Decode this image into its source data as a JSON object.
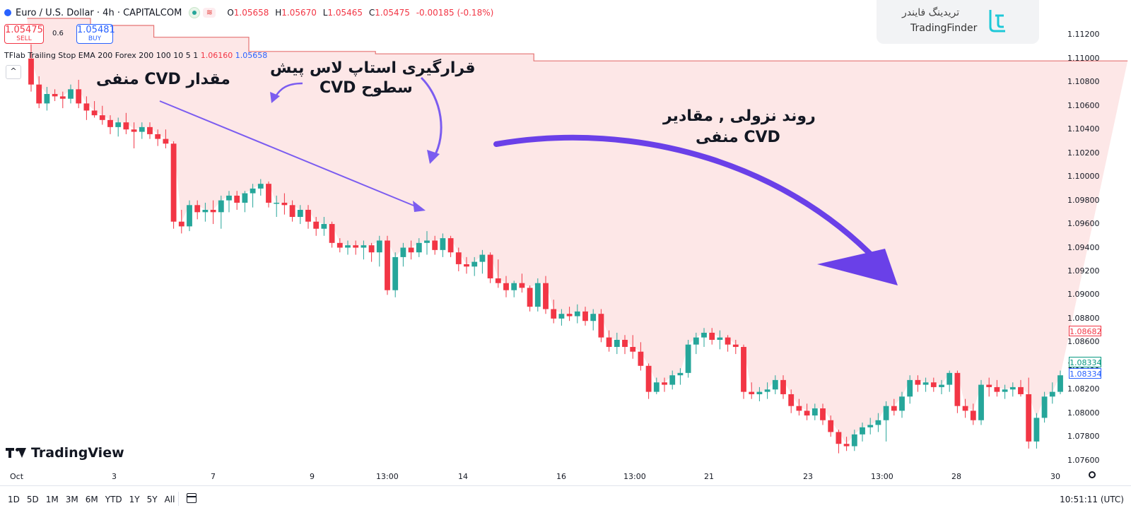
{
  "header": {
    "symbol_title": "Euro / U.S. Dollar · 4h · CAPITALCOM",
    "ohlc": [
      {
        "k": "O",
        "v": "1.05658"
      },
      {
        "k": "H",
        "v": "1.05670"
      },
      {
        "k": "L",
        "v": "1.05465"
      },
      {
        "k": "C",
        "v": "1.05475"
      },
      {
        "k": "",
        "v": "-0.00185 (-0.18%)"
      }
    ],
    "wave_icon": "≋"
  },
  "trade": {
    "sell_price": "1.05475",
    "sell_label": "SELL",
    "spread": "0.6",
    "buy_price": "1.05481",
    "buy_label": "BUY"
  },
  "indicator": {
    "name": "TFlab Trailing Stop EMA 200 Forex 200 100 10 5 1",
    "value_red": "1.06160",
    "value_blue": "1.05658",
    "collapse_icon": "^"
  },
  "brand": {
    "persian": "تریدینگ فایندر",
    "english": "TradingFinder"
  },
  "annotations": {
    "negative_cvd": "مقدار CVD منفی",
    "stop_line1": "قرارگیری استاپ لاس پیش",
    "stop_line2": "سطوح CVD",
    "trend_line1": "روند نزولی , مقادیر",
    "trend_line2": "CVD منفی"
  },
  "tradingview_label": "TradingView",
  "price_axis": [
    "1.11200",
    "1.11000",
    "1.10800",
    "1.10600",
    "1.10400",
    "1.10200",
    "1.10000",
    "1.09800",
    "1.09600",
    "1.09400",
    "1.09200",
    "1.09000",
    "1.08800",
    "1.08600",
    "1.08400",
    "1.08200",
    "1.08000",
    "1.07800",
    "1.07600"
  ],
  "price_tags": {
    "red": "1.08682",
    "green": "1.08334",
    "blue": "1.08334"
  },
  "time_axis": [
    "Oct",
    "3",
    "7",
    "9",
    "13:00",
    "14",
    "16",
    "13:00",
    "21",
    "23",
    "13:00",
    "28",
    "30"
  ],
  "ranges": [
    "1D",
    "5D",
    "1M",
    "3M",
    "6M",
    "YTD",
    "1Y",
    "5Y",
    "All"
  ],
  "clock": "10:51:11 (UTC)",
  "colors": {
    "up": "#26a69a",
    "down": "#f23645",
    "stop_line": "#e57373",
    "stop_fill": "#fde7e7",
    "arrow": "#7b5cf0"
  },
  "chart_data": {
    "type": "candlestick",
    "ylim": [
      1.0755,
      1.1128
    ],
    "candles": [
      [
        1.11,
        1.1112,
        1.1072,
        1.1078
      ],
      [
        1.1078,
        1.1085,
        1.1058,
        1.1062
      ],
      [
        1.1062,
        1.1076,
        1.1056,
        1.107
      ],
      [
        1.107,
        1.1074,
        1.1064,
        1.1068
      ],
      [
        1.1068,
        1.1072,
        1.1058,
        1.1066
      ],
      [
        1.1066,
        1.1078,
        1.1062,
        1.1074
      ],
      [
        1.1074,
        1.1082,
        1.1058,
        1.1062
      ],
      [
        1.1062,
        1.1068,
        1.1048,
        1.1056
      ],
      [
        1.1056,
        1.1064,
        1.105,
        1.1052
      ],
      [
        1.1052,
        1.106,
        1.1044,
        1.1048
      ],
      [
        1.1048,
        1.1052,
        1.1036,
        1.1042
      ],
      [
        1.1042,
        1.105,
        1.1034,
        1.1046
      ],
      [
        1.1046,
        1.1054,
        1.1036,
        1.104
      ],
      [
        1.104,
        1.1046,
        1.1024,
        1.1038
      ],
      [
        1.1038,
        1.1046,
        1.1032,
        1.1042
      ],
      [
        1.1042,
        1.1046,
        1.1032,
        1.1036
      ],
      [
        1.1036,
        1.104,
        1.1026,
        1.1032
      ],
      [
        1.1032,
        1.104,
        1.1024,
        1.1028
      ],
      [
        1.1028,
        1.103,
        1.0956,
        1.0962
      ],
      [
        1.0962,
        1.0972,
        1.0952,
        1.0958
      ],
      [
        1.0958,
        1.098,
        1.0954,
        1.0976
      ],
      [
        1.0976,
        1.098,
        1.0964,
        1.097
      ],
      [
        1.097,
        1.0978,
        1.0962,
        1.0972
      ],
      [
        1.0972,
        1.098,
        1.096,
        1.097
      ],
      [
        1.097,
        1.0984,
        1.0956,
        1.098
      ],
      [
        1.098,
        1.0988,
        1.097,
        1.0984
      ],
      [
        1.0984,
        1.0988,
        1.0972,
        1.0978
      ],
      [
        1.0978,
        1.0988,
        1.097,
        1.0986
      ],
      [
        1.0986,
        1.0994,
        1.0974,
        1.099
      ],
      [
        1.099,
        1.0998,
        1.0984,
        1.0994
      ],
      [
        1.0994,
        1.0996,
        1.0974,
        1.0978
      ],
      [
        1.0978,
        1.0984,
        1.0966,
        1.0978
      ],
      [
        1.0978,
        1.0986,
        1.0968,
        1.0976
      ],
      [
        1.0976,
        1.098,
        1.0962,
        1.0966
      ],
      [
        1.0966,
        1.0976,
        1.096,
        1.0972
      ],
      [
        1.0972,
        1.0976,
        1.0956,
        1.0962
      ],
      [
        1.0962,
        1.0966,
        1.095,
        1.0956
      ],
      [
        1.0956,
        1.0966,
        1.095,
        1.096
      ],
      [
        1.096,
        1.0962,
        1.094,
        1.0944
      ],
      [
        1.0944,
        1.0948,
        1.0936,
        1.094
      ],
      [
        1.094,
        1.0946,
        1.0934,
        1.0942
      ],
      [
        1.0942,
        1.0946,
        1.0934,
        1.094
      ],
      [
        1.094,
        1.0946,
        1.093,
        1.0942
      ],
      [
        1.0942,
        1.0944,
        1.0928,
        1.0936
      ],
      [
        1.0936,
        1.095,
        1.0924,
        1.0946
      ],
      [
        1.0946,
        1.095,
        1.09,
        1.0904
      ],
      [
        1.0904,
        1.0936,
        1.0898,
        1.0932
      ],
      [
        1.0932,
        1.0944,
        1.0924,
        1.094
      ],
      [
        1.094,
        1.0946,
        1.093,
        1.0936
      ],
      [
        1.0936,
        1.0948,
        1.0932,
        1.0944
      ],
      [
        1.0944,
        1.0954,
        1.0934,
        1.0946
      ],
      [
        1.0946,
        1.095,
        1.0934,
        1.0938
      ],
      [
        1.0938,
        1.0952,
        1.0932,
        1.0948
      ],
      [
        1.0948,
        1.095,
        1.0932,
        1.0936
      ],
      [
        1.0936,
        1.094,
        1.092,
        1.0926
      ],
      [
        1.0926,
        1.0932,
        1.0918,
        1.0924
      ],
      [
        1.0924,
        1.0932,
        1.0916,
        1.0928
      ],
      [
        1.0928,
        1.0938,
        1.0918,
        1.0934
      ],
      [
        1.0934,
        1.0936,
        1.091,
        1.0914
      ],
      [
        1.0914,
        1.093,
        1.0906,
        1.091
      ],
      [
        1.091,
        1.0916,
        1.0898,
        1.0904
      ],
      [
        1.0904,
        1.0912,
        1.0898,
        1.091
      ],
      [
        1.091,
        1.0918,
        1.0902,
        1.0906
      ],
      [
        1.0906,
        1.0908,
        1.0886,
        1.089
      ],
      [
        1.089,
        1.0914,
        1.0886,
        1.091
      ],
      [
        1.091,
        1.0916,
        1.0884,
        1.0888
      ],
      [
        1.0888,
        1.0896,
        1.0876,
        1.088
      ],
      [
        1.088,
        1.0888,
        1.0874,
        1.0884
      ],
      [
        1.0884,
        1.089,
        1.0878,
        1.0882
      ],
      [
        1.0882,
        1.0892,
        1.0876,
        1.0886
      ],
      [
        1.0886,
        1.089,
        1.0874,
        1.0878
      ],
      [
        1.0878,
        1.0888,
        1.087,
        1.0884
      ],
      [
        1.0884,
        1.0888,
        1.086,
        1.0864
      ],
      [
        1.0864,
        1.087,
        1.0852,
        1.0856
      ],
      [
        1.0856,
        1.0868,
        1.085,
        1.0862
      ],
      [
        1.0862,
        1.0866,
        1.085,
        1.0856
      ],
      [
        1.0856,
        1.0866,
        1.0846,
        1.0852
      ],
      [
        1.0852,
        1.086,
        1.0836,
        1.084
      ],
      [
        1.084,
        1.0842,
        1.0812,
        1.0818
      ],
      [
        1.0818,
        1.083,
        1.0816,
        1.0826
      ],
      [
        1.0826,
        1.083,
        1.0818,
        1.0824
      ],
      [
        1.0824,
        1.0836,
        1.082,
        1.0832
      ],
      [
        1.0832,
        1.0838,
        1.0824,
        1.0834
      ],
      [
        1.0834,
        1.0862,
        1.083,
        1.0858
      ],
      [
        1.0858,
        1.0868,
        1.085,
        1.0864
      ],
      [
        1.0864,
        1.0872,
        1.0856,
        1.0868
      ],
      [
        1.0868,
        1.0872,
        1.0858,
        1.0862
      ],
      [
        1.0862,
        1.087,
        1.0854,
        1.0864
      ],
      [
        1.0864,
        1.0866,
        1.0852,
        1.0858
      ],
      [
        1.0858,
        1.0862,
        1.085,
        1.0856
      ],
      [
        1.0856,
        1.0858,
        1.0812,
        1.0818
      ],
      [
        1.0818,
        1.0826,
        1.0812,
        1.0816
      ],
      [
        1.0816,
        1.0822,
        1.081,
        1.0818
      ],
      [
        1.0818,
        1.0826,
        1.0812,
        1.082
      ],
      [
        1.082,
        1.0832,
        1.0816,
        1.0828
      ],
      [
        1.0828,
        1.0832,
        1.0812,
        1.0816
      ],
      [
        1.0816,
        1.082,
        1.08,
        1.0806
      ],
      [
        1.0806,
        1.0812,
        1.0798,
        1.0802
      ],
      [
        1.0802,
        1.0808,
        1.0794,
        1.0798
      ],
      [
        1.0798,
        1.0808,
        1.0794,
        1.0804
      ],
      [
        1.0804,
        1.0808,
        1.079,
        1.0794
      ],
      [
        1.0794,
        1.0798,
        1.078,
        1.0784
      ],
      [
        1.0784,
        1.0786,
        1.0766,
        1.0774
      ],
      [
        1.0774,
        1.078,
        1.0768,
        1.0772
      ],
      [
        1.0772,
        1.0786,
        1.0768,
        1.0782
      ],
      [
        1.0782,
        1.0792,
        1.0776,
        1.0788
      ],
      [
        1.0788,
        1.0796,
        1.0782,
        1.079
      ],
      [
        1.079,
        1.08,
        1.0784,
        1.0794
      ],
      [
        1.0794,
        1.081,
        1.0776,
        1.0806
      ],
      [
        1.0806,
        1.0812,
        1.0798,
        1.0802
      ],
      [
        1.0802,
        1.0818,
        1.0796,
        1.0814
      ],
      [
        1.0814,
        1.0832,
        1.0808,
        1.0828
      ],
      [
        1.0828,
        1.0832,
        1.0818,
        1.0824
      ],
      [
        1.0824,
        1.083,
        1.0818,
        1.0826
      ],
      [
        1.0826,
        1.083,
        1.0818,
        1.0822
      ],
      [
        1.0822,
        1.0828,
        1.0816,
        1.0824
      ],
      [
        1.0824,
        1.0836,
        1.0818,
        1.0834
      ],
      [
        1.0834,
        1.0836,
        1.08,
        1.0806
      ],
      [
        1.0806,
        1.0812,
        1.0796,
        1.0802
      ],
      [
        1.0802,
        1.0808,
        1.079,
        1.0794
      ],
      [
        1.0794,
        1.0828,
        1.079,
        1.0824
      ],
      [
        1.0824,
        1.083,
        1.0814,
        1.0822
      ],
      [
        1.0822,
        1.0828,
        1.0814,
        1.0818
      ],
      [
        1.0818,
        1.0824,
        1.0812,
        1.082
      ],
      [
        1.082,
        1.0826,
        1.0814,
        1.0822
      ],
      [
        1.0822,
        1.0828,
        1.0814,
        1.0816
      ],
      [
        1.0816,
        1.083,
        1.077,
        1.0776
      ],
      [
        1.0776,
        1.08,
        1.077,
        1.0796
      ],
      [
        1.0796,
        1.0818,
        1.0792,
        1.0814
      ],
      [
        1.0814,
        1.0826,
        1.0808,
        1.0818
      ],
      [
        1.0818,
        1.0836,
        1.0816,
        1.0832
      ]
    ],
    "trailing_stop": [
      1.1134,
      1.1134,
      1.1134,
      1.1134,
      1.1134,
      1.1134,
      1.1134,
      1.1134,
      1.1128,
      1.1128,
      1.1128,
      1.1128,
      1.1128,
      1.1128,
      1.1128,
      1.1128,
      1.1118,
      1.1118,
      1.1118,
      1.1118,
      1.1118,
      1.1118,
      1.1118,
      1.1118,
      1.1118,
      1.1118,
      1.1118,
      1.1118,
      1.1106,
      1.1106,
      1.1106,
      1.1106,
      1.1106,
      1.1106,
      1.1106,
      1.1106,
      1.1106,
      1.1106,
      1.1106,
      1.1106,
      1.1106,
      1.1106,
      1.1106,
      1.1106,
      1.1104,
      1.1104,
      1.1104,
      1.1104,
      1.1104,
      1.1104,
      1.1104,
      1.1104,
      1.1104,
      1.1104,
      1.1104,
      1.1104,
      1.1104,
      1.1104,
      1.1104,
      1.1104,
      1.1104,
      1.1104,
      1.1104,
      1.1104,
      1.1098,
      1.1098,
      1.1098,
      1.1098,
      1.1098,
      1.1098,
      1.1098,
      1.1098,
      1.1098,
      1.1098,
      1.1098,
      1.1098,
      1.1098,
      1.1098,
      1.1098,
      1.1098,
      1.1098,
      1.1098,
      1.1098,
      1.1098,
      1.1098,
      1.1098,
      1.1098,
      1.1098,
      1.1098,
      1.1098,
      1.1098,
      1.1098,
      1.1098,
      1.1098,
      1.1098,
      1.1098,
      1.1098,
      1.1098,
      1.1098,
      1.1098,
      1.1098,
      1.1098,
      1.1098,
      1.1098,
      1.1098,
      1.1098,
      1.1098,
      1.1098,
      1.1098,
      1.1098,
      1.1098,
      1.1098,
      1.1098,
      1.1098,
      1.1098,
      1.1098,
      1.1098,
      1.1098,
      1.1098,
      1.1098,
      1.1098,
      1.1098,
      1.1098,
      1.1098,
      1.1098,
      1.1098,
      1.1098,
      1.1098,
      1.1098,
      1.1098,
      1.1098,
      1.1098,
      1.1098,
      1.1098,
      1.1098,
      1.1098,
      1.1098,
      1.1098,
      1.1098
    ]
  }
}
